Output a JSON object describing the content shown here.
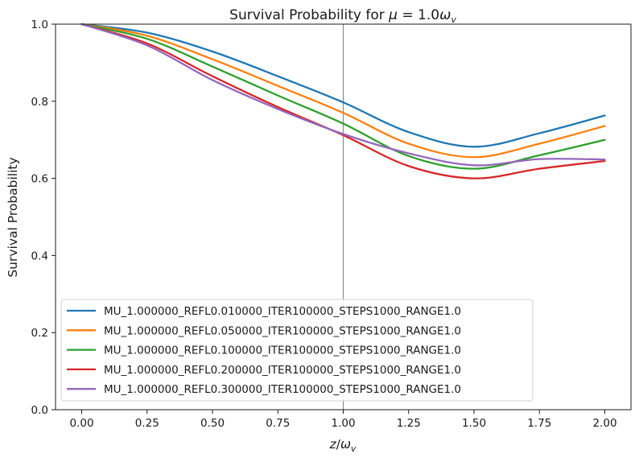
{
  "chart_data": {
    "type": "line",
    "title": {
      "prefix": "Survival Probability for ",
      "mu": "μ",
      "eq": " = 1.0",
      "omega": "ω",
      "sub": "v"
    },
    "xlabel": {
      "z": "z",
      "slash": "/",
      "omega": "ω",
      "sub": "v"
    },
    "ylabel": "Survival Probability",
    "xlim": [
      -0.1,
      2.1
    ],
    "ylim": [
      0.0,
      1.0
    ],
    "xticks": [
      0.0,
      0.25,
      0.5,
      0.75,
      1.0,
      1.25,
      1.5,
      1.75,
      2.0
    ],
    "xtick_labels": [
      "0.00",
      "0.25",
      "0.50",
      "0.75",
      "1.00",
      "1.25",
      "1.50",
      "1.75",
      "2.00"
    ],
    "yticks": [
      0.0,
      0.2,
      0.4,
      0.6,
      0.8,
      1.0
    ],
    "ytick_labels": [
      "0.0",
      "0.2",
      "0.4",
      "0.6",
      "0.8",
      "1.0"
    ],
    "vertical_line_x": 1.0,
    "grid": false,
    "legend_position": "lower-left",
    "x": [
      0.0,
      0.25,
      0.5,
      0.75,
      1.0,
      1.25,
      1.5,
      1.75,
      2.0
    ],
    "series": [
      {
        "name": "MU_1.000000_REFL0.010000_ITER100000_STEPS1000_RANGE1.0",
        "color": "#1f77b4",
        "values": [
          1.0,
          0.978,
          0.929,
          0.865,
          0.797,
          0.72,
          0.682,
          0.717,
          0.763
        ]
      },
      {
        "name": "MU_1.000000_REFL0.050000_ITER100000_STEPS1000_RANGE1.0",
        "color": "#ff7f0e",
        "values": [
          1.0,
          0.97,
          0.909,
          0.84,
          0.77,
          0.69,
          0.655,
          0.69,
          0.736
        ]
      },
      {
        "name": "MU_1.000000_REFL0.100000_ITER100000_STEPS1000_RANGE1.0",
        "color": "#2ca02c",
        "values": [
          1.0,
          0.962,
          0.89,
          0.815,
          0.742,
          0.658,
          0.625,
          0.66,
          0.7
        ]
      },
      {
        "name": "MU_1.000000_REFL0.200000_ITER100000_STEPS1000_RANGE1.0",
        "color": "#d62728",
        "values": [
          1.0,
          0.95,
          0.865,
          0.785,
          0.712,
          0.632,
          0.6,
          0.625,
          0.645
        ]
      },
      {
        "name": "MU_1.000000_REFL0.300000_ITER100000_STEPS1000_RANGE1.0",
        "color": "#9467bd",
        "values": [
          1.0,
          0.945,
          0.855,
          0.78,
          0.715,
          0.665,
          0.634,
          0.65,
          0.649
        ]
      }
    ]
  }
}
